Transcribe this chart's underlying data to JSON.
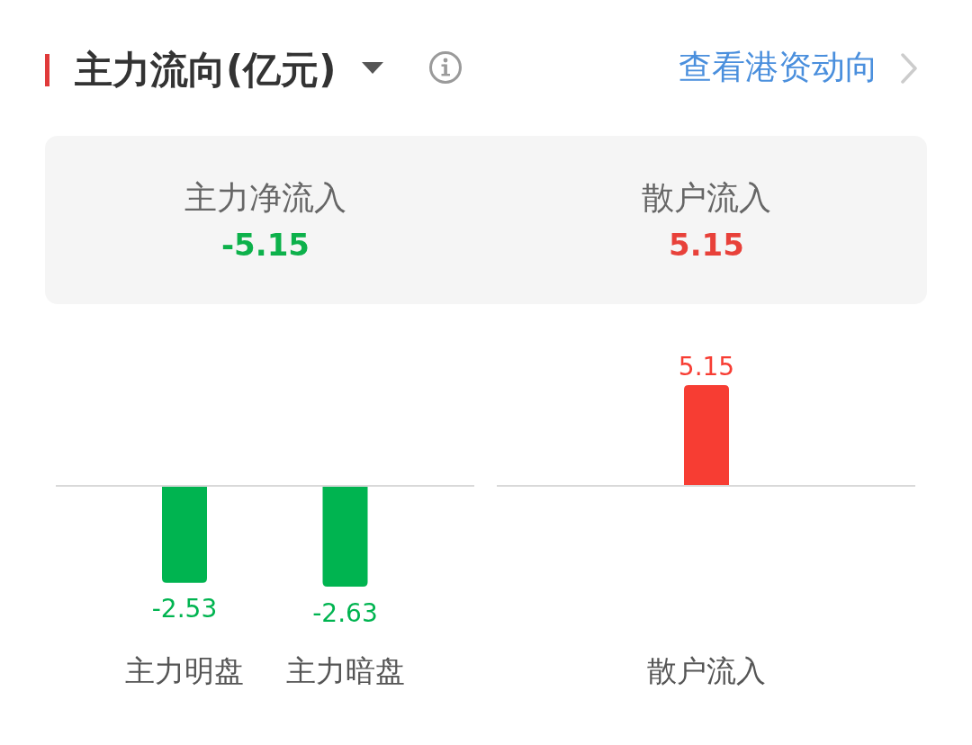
{
  "chart_data": [
    {
      "type": "other",
      "title": "主力流向(亿元)",
      "annotations": [
        "查看港资动向"
      ],
      "categories": [
        "主力净流入",
        "散户流入"
      ],
      "values": [
        -5.15,
        5.15
      ],
      "data_labels": true
    },
    {
      "type": "bar",
      "categories": [
        "主力明盘",
        "主力暗盘"
      ],
      "values": [
        -2.53,
        -2.63
      ],
      "color": "#00b450",
      "data_labels": true
    },
    {
      "type": "bar",
      "categories": [
        "散户流入"
      ],
      "values": [
        5.15
      ],
      "color": "#f73d33",
      "data_labels": true
    }
  ]
}
